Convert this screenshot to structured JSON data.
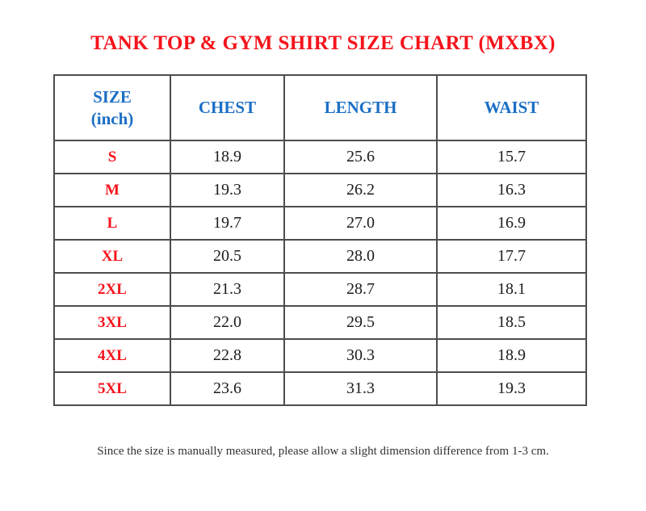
{
  "title": "TANK TOP & GYM SHIRT SIZE CHART (MXBX)",
  "footnote": "Since the size is manually measured, please allow a slight dimension difference from 1-3 cm.",
  "header": {
    "size_label": "SIZE",
    "size_unit": "(inch)",
    "measure_columns": [
      "CHEST",
      "LENGTH",
      "WAIST"
    ]
  },
  "chart_data": {
    "type": "table",
    "title": "TANK TOP & GYM SHIRT SIZE CHART (MXBX)",
    "unit": "inch",
    "columns": [
      "SIZE (inch)",
      "CHEST",
      "LENGTH",
      "WAIST"
    ],
    "rows": [
      [
        "S",
        "18.9",
        "25.6",
        "15.7"
      ],
      [
        "M",
        "19.3",
        "26.2",
        "16.3"
      ],
      [
        "L",
        "19.7",
        "27.0",
        "16.9"
      ],
      [
        "XL",
        "20.5",
        "28.0",
        "17.7"
      ],
      [
        "2XL",
        "21.3",
        "28.7",
        "18.1"
      ],
      [
        "3XL",
        "22.0",
        "29.5",
        "18.5"
      ],
      [
        "4XL",
        "22.8",
        "30.3",
        "18.9"
      ],
      [
        "5XL",
        "23.6",
        "31.3",
        "19.3"
      ]
    ],
    "note": "Since the size is manually measured, please allow a slight dimension difference from 1-3 cm."
  },
  "colors": {
    "title_red": "#f5131b",
    "size_red": "#f5131b",
    "header_blue": "#1b6fc5",
    "border_color": "#4d4d4d",
    "value_color": "#1c1c1c",
    "note_color": "#333333"
  }
}
